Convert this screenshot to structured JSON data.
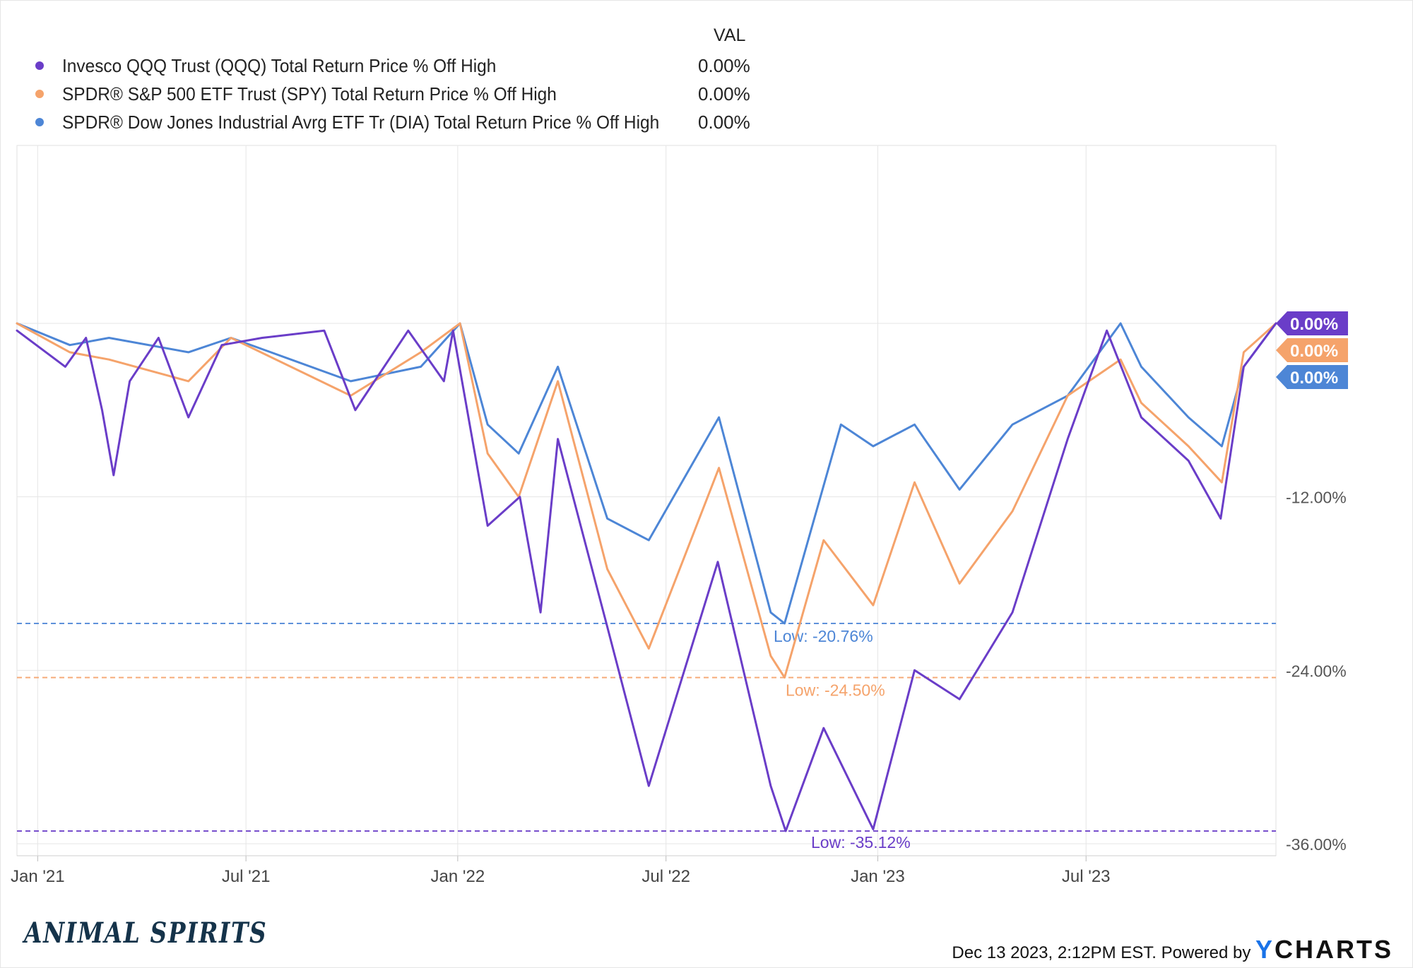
{
  "legend": {
    "header": "VAL",
    "items": [
      {
        "name": "Invesco QQQ Trust (QQQ) Total Return Price % Off High",
        "value": "0.00%",
        "color": "#6a3dc8"
      },
      {
        "name": "SPDR® S&P 500 ETF Trust (SPY) Total Return Price % Off High",
        "value": "0.00%",
        "color": "#f5a36b"
      },
      {
        "name": "SPDR® Dow Jones Industrial Avrg ETF Tr (DIA) Total Return Price % Off High",
        "value": "0.00%",
        "color": "#4d86d6"
      }
    ]
  },
  "footer": {
    "logo": "ANIMAL SPIRITS",
    "stamp": "Dec 13 2023, 2:12PM EST. Powered by",
    "brand_y": "Y",
    "brand_rest": "CHARTS"
  },
  "chart_data": {
    "type": "line",
    "xlim": [
      "2020-12-14",
      "2023-12-13"
    ],
    "x_ticks": [
      {
        "date": "2021-01-01",
        "label": "Jan '21"
      },
      {
        "date": "2021-07-01",
        "label": "Jul '21"
      },
      {
        "date": "2022-01-01",
        "label": "Jan '22"
      },
      {
        "date": "2022-07-01",
        "label": "Jul '22"
      },
      {
        "date": "2023-01-01",
        "label": "Jan '23"
      },
      {
        "date": "2023-07-01",
        "label": "Jul '23"
      }
    ],
    "ylim": [
      -36,
      0
    ],
    "y_ticks": [
      {
        "value": 0,
        "label": "0.00%"
      },
      {
        "value": -12,
        "label": "-12.00%"
      },
      {
        "value": -24,
        "label": "-24.00%"
      },
      {
        "value": -36,
        "label": "-36.00%"
      }
    ],
    "grid": true,
    "series": [
      {
        "name": "Invesco QQQ Trust (QQQ) Total Return Price % Off High",
        "color": "#6a3dc8",
        "end_label": "0.00%",
        "low": {
          "value": -35.12,
          "label": "Low: -35.12%"
        },
        "x": [
          "2020-12-14",
          "2021-01-25",
          "2021-02-12",
          "2021-02-26",
          "2021-03-08",
          "2021-03-22",
          "2021-04-16",
          "2021-05-12",
          "2021-06-10",
          "2021-07-15",
          "2021-09-07",
          "2021-10-04",
          "2021-11-19",
          "2021-12-20",
          "2021-12-28",
          "2022-01-27",
          "2022-02-24",
          "2022-03-14",
          "2022-03-29",
          "2022-05-11",
          "2022-06-16",
          "2022-08-15",
          "2022-09-30",
          "2022-10-13",
          "2022-11-15",
          "2022-12-28",
          "2023-02-02",
          "2023-03-13",
          "2023-04-28",
          "2023-06-15",
          "2023-07-19",
          "2023-08-18",
          "2023-09-28",
          "2023-10-26",
          "2023-11-15",
          "2023-12-13"
        ],
        "y": [
          -0.5,
          -3,
          -1,
          -6,
          -10.5,
          -4,
          -1,
          -6.5,
          -1.5,
          -1,
          -0.5,
          -6,
          -0.5,
          -4,
          -0.5,
          -14,
          -12,
          -20,
          -8,
          -21,
          -32,
          -16.5,
          -32,
          -35.12,
          -28,
          -35,
          -24,
          -26,
          -20,
          -8,
          -0.5,
          -6.5,
          -9.5,
          -13.5,
          -3,
          0
        ]
      },
      {
        "name": "SPDR® S&P 500 ETF Trust (SPY) Total Return Price % Off High",
        "color": "#f5a36b",
        "end_label": "0.00%",
        "low": {
          "value": -24.5,
          "label": "Low: -24.50%"
        },
        "x": [
          "2020-12-14",
          "2021-01-29",
          "2021-03-04",
          "2021-05-12",
          "2021-06-18",
          "2021-09-30",
          "2021-11-30",
          "2022-01-03",
          "2022-01-27",
          "2022-02-23",
          "2022-03-29",
          "2022-05-11",
          "2022-06-16",
          "2022-08-16",
          "2022-09-30",
          "2022-10-12",
          "2022-11-15",
          "2022-12-28",
          "2023-02-02",
          "2023-03-13",
          "2023-04-28",
          "2023-06-15",
          "2023-07-31",
          "2023-08-18",
          "2023-09-28",
          "2023-10-27",
          "2023-11-15",
          "2023-12-13"
        ],
        "y": [
          0,
          -2,
          -2.5,
          -4,
          -1,
          -5,
          -2,
          0,
          -9,
          -12,
          -4,
          -17,
          -22.5,
          -10,
          -23,
          -24.5,
          -15,
          -19.5,
          -11,
          -18,
          -13,
          -5,
          -2.5,
          -5.5,
          -8.5,
          -11,
          -2,
          0
        ]
      },
      {
        "name": "SPDR® Dow Jones Industrial Avrg ETF Tr (DIA) Total Return Price % Off High",
        "color": "#4d86d6",
        "end_label": "0.00%",
        "low": {
          "value": -20.76,
          "label": "Low: -20.76%"
        },
        "x": [
          "2020-12-14",
          "2021-01-29",
          "2021-03-04",
          "2021-05-12",
          "2021-06-18",
          "2021-09-30",
          "2021-11-30",
          "2022-01-03",
          "2022-01-27",
          "2022-02-23",
          "2022-03-29",
          "2022-05-11",
          "2022-06-16",
          "2022-08-16",
          "2022-09-30",
          "2022-10-12",
          "2022-11-30",
          "2022-12-28",
          "2023-02-02",
          "2023-03-13",
          "2023-04-28",
          "2023-06-15",
          "2023-07-31",
          "2023-08-18",
          "2023-09-28",
          "2023-10-27",
          "2023-11-15",
          "2023-12-13"
        ],
        "y": [
          0,
          -1.5,
          -1,
          -2,
          -1,
          -4,
          -3,
          0,
          -7,
          -9,
          -3,
          -13.5,
          -15,
          -6.5,
          -20,
          -20.76,
          -7,
          -8.5,
          -7,
          -11.5,
          -7,
          -5,
          0,
          -3,
          -6.5,
          -8.5,
          -3,
          0
        ]
      }
    ]
  }
}
